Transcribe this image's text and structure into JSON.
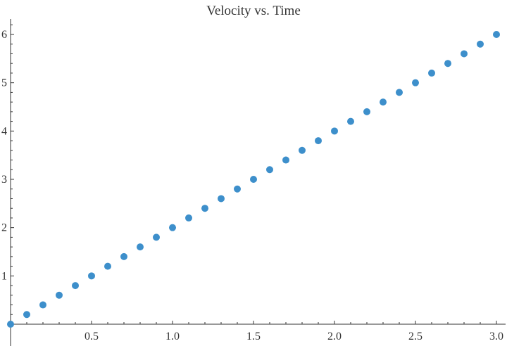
{
  "chart_data": {
    "type": "scatter",
    "title": "Velocity vs. Time",
    "xlabel": "",
    "ylabel": "",
    "xlim": [
      0,
      3.0
    ],
    "ylim": [
      0,
      6.3
    ],
    "x_ticks": [
      "0.5",
      "1.0",
      "1.5",
      "2.0",
      "2.5",
      "3.0"
    ],
    "y_ticks": [
      "1",
      "2",
      "3",
      "4",
      "5",
      "6"
    ],
    "grid": false,
    "marker_color": "#3d8fcb",
    "series": [
      {
        "x": [
          0,
          0.1,
          0.2,
          0.3,
          0.4,
          0.5,
          0.6,
          0.7,
          0.8,
          0.9,
          1.0,
          1.1,
          1.2,
          1.3,
          1.4,
          1.5,
          1.6,
          1.7,
          1.8,
          1.9,
          2.0,
          2.1,
          2.2,
          2.3,
          2.4,
          2.5,
          2.6,
          2.7,
          2.8,
          2.9,
          3.0
        ],
        "y": [
          0,
          0.2,
          0.4,
          0.6,
          0.8,
          1.0,
          1.2,
          1.4,
          1.6,
          1.8,
          2.0,
          2.2,
          2.4,
          2.6,
          2.8,
          3.0,
          3.2,
          3.4,
          3.6,
          3.8,
          4.0,
          4.2,
          4.4,
          4.6,
          4.8,
          5.0,
          5.2,
          5.4,
          5.6,
          5.8,
          6.0
        ]
      }
    ]
  }
}
